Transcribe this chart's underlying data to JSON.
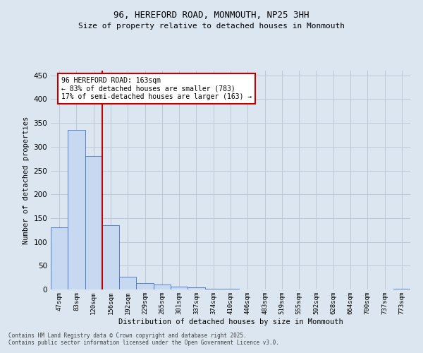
{
  "title1": "96, HEREFORD ROAD, MONMOUTH, NP25 3HH",
  "title2": "Size of property relative to detached houses in Monmouth",
  "xlabel": "Distribution of detached houses by size in Monmouth",
  "ylabel": "Number of detached properties",
  "categories": [
    "47sqm",
    "83sqm",
    "120sqm",
    "156sqm",
    "192sqm",
    "229sqm",
    "265sqm",
    "301sqm",
    "337sqm",
    "374sqm",
    "410sqm",
    "446sqm",
    "483sqm",
    "519sqm",
    "555sqm",
    "592sqm",
    "628sqm",
    "664sqm",
    "700sqm",
    "737sqm",
    "773sqm"
  ],
  "values": [
    131,
    335,
    280,
    135,
    27,
    14,
    10,
    6,
    5,
    2,
    1,
    0,
    0,
    0,
    0,
    0,
    0,
    0,
    0,
    0,
    1
  ],
  "bar_color": "#c6d9f0",
  "bar_edge_color": "#4472c4",
  "grid_color": "#c0c8d8",
  "vline_color": "#c00000",
  "annotation_line1": "96 HEREFORD ROAD: 163sqm",
  "annotation_line2": "← 83% of detached houses are smaller (783)",
  "annotation_line3": "17% of semi-detached houses are larger (163) →",
  "annotation_box_color": "#c00000",
  "footer1": "Contains HM Land Registry data © Crown copyright and database right 2025.",
  "footer2": "Contains public sector information licensed under the Open Government Licence v3.0.",
  "bg_color": "#dce6f1",
  "ylim": [
    0,
    460
  ],
  "yticks": [
    0,
    50,
    100,
    150,
    200,
    250,
    300,
    350,
    400,
    450
  ]
}
